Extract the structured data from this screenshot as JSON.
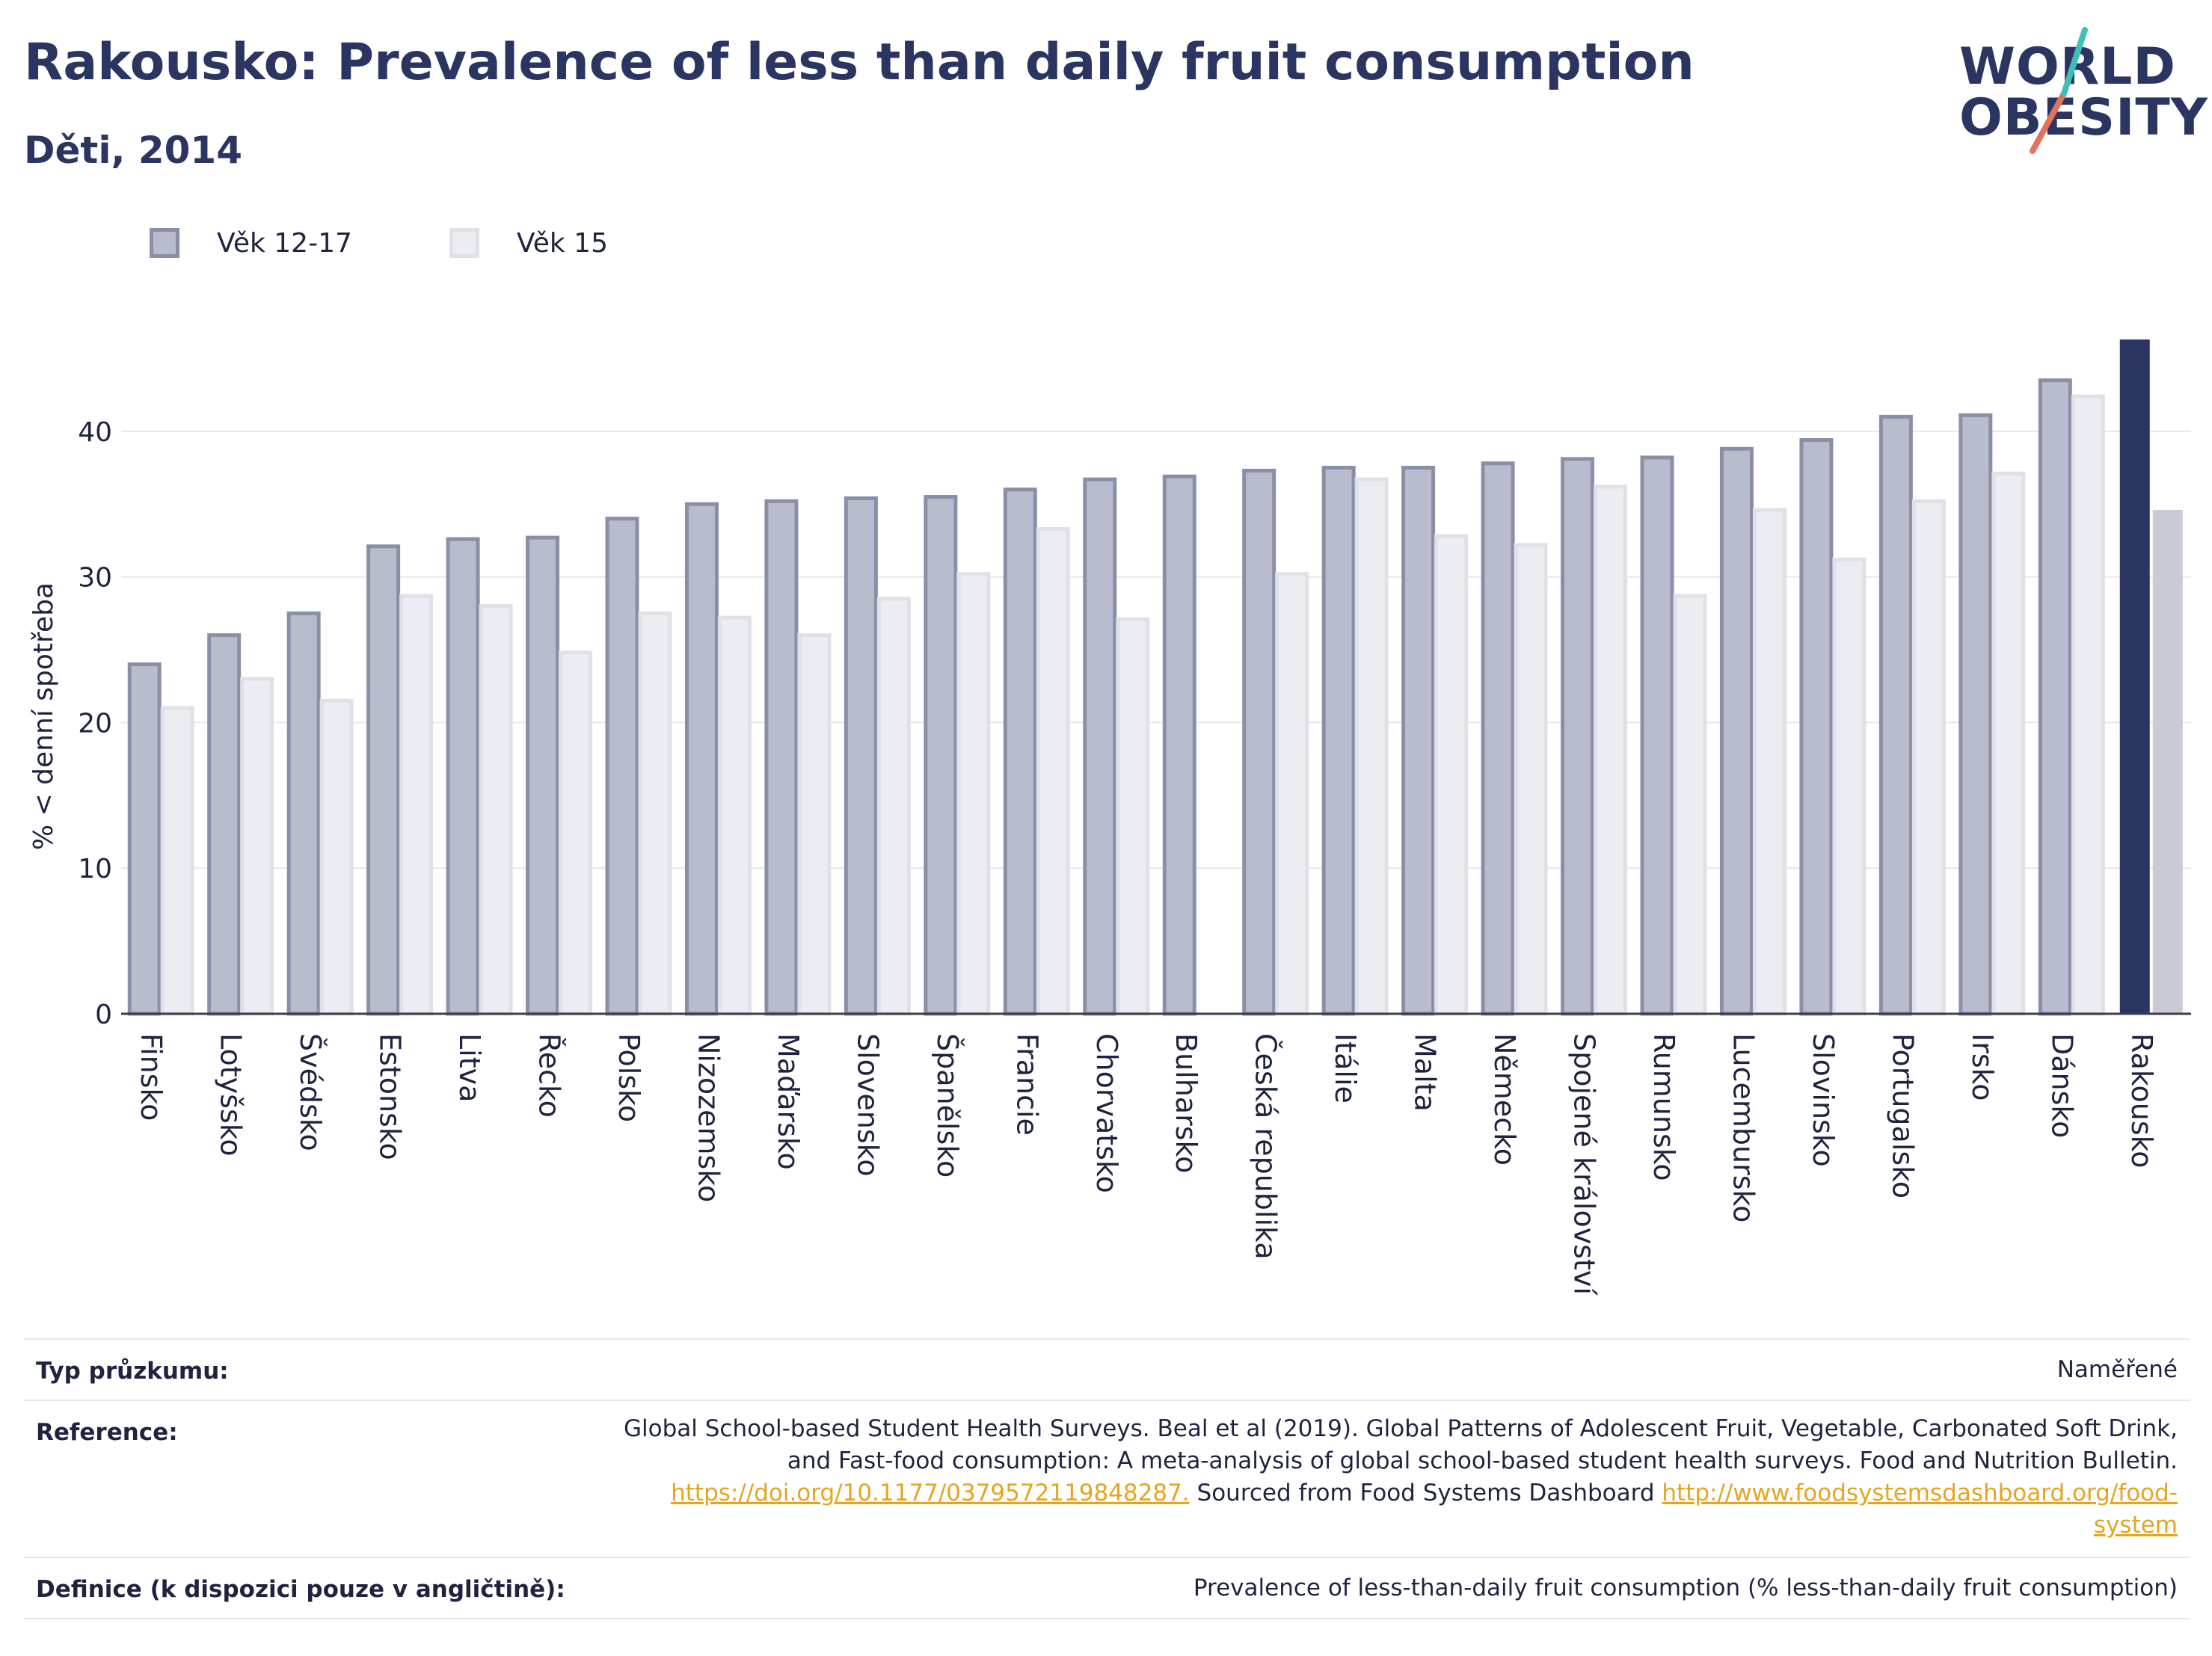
{
  "header": {
    "title": "Rakousko: Prevalence of less than daily fruit consumption",
    "subtitle": "Děti, 2014"
  },
  "logo": {
    "line1": "WORLD",
    "line2": "OBESITY"
  },
  "legend": [
    {
      "label": "Věk 12-17",
      "color": "#b9bccd"
    },
    {
      "label": "Věk 15",
      "color": "#ecedf2"
    }
  ],
  "chart_data": {
    "type": "bar",
    "ylabel": "% < denní spotřeba",
    "xlabel": "",
    "ylim": [
      0,
      46
    ],
    "yticks": [
      0,
      10,
      20,
      30,
      40
    ],
    "grid": true,
    "legend_position": "top-left",
    "categories": [
      "Finsko",
      "Lotyšsko",
      "Švédsko",
      "Estonsko",
      "Litva",
      "Řecko",
      "Polsko",
      "Nizozemsko",
      "Maďarsko",
      "Slovensko",
      "Španělsko",
      "Francie",
      "Chorvatsko",
      "Bulharsko",
      "Česká republika",
      "Itálie",
      "Malta",
      "Německo",
      "Spojené království",
      "Rumunsko",
      "Lucembursko",
      "Slovinsko",
      "Portugalsko",
      "Irsko",
      "Dánsko",
      "Rakousko"
    ],
    "highlight": "Rakousko",
    "series": [
      {
        "name": "Věk 12-17",
        "color": "#b9bccd",
        "highlight_color": "#2b3562",
        "values": [
          24.0,
          26.0,
          27.5,
          32.1,
          32.6,
          32.7,
          34.0,
          35.0,
          35.2,
          35.4,
          35.5,
          36.0,
          36.7,
          36.9,
          37.3,
          37.5,
          37.5,
          37.8,
          38.1,
          38.2,
          38.8,
          39.4,
          41.0,
          41.1,
          43.5,
          46.3
        ]
      },
      {
        "name": "Věk 15",
        "color": "#ecedf2",
        "highlight_color": "#c9cad6",
        "values": [
          21.0,
          23.0,
          21.5,
          28.7,
          28.0,
          24.8,
          27.5,
          27.2,
          26.0,
          28.5,
          30.2,
          33.3,
          27.1,
          null,
          30.2,
          36.7,
          32.8,
          32.2,
          36.2,
          28.7,
          34.6,
          31.2,
          35.2,
          37.1,
          42.4,
          34.6
        ]
      }
    ]
  },
  "table": {
    "survey_label": "Typ průzkumu:",
    "survey_value": "Naměřené",
    "reference_label": "Reference:",
    "reference_line1": "Global School-based Student Health Surveys. Beal et al (2019). Global Patterns of Adolescent Fruit, Vegetable, Carbonated Soft Drink,",
    "reference_line2": "and Fast-food consumption: A meta-analysis of global school-based student health surveys. Food and Nutrition Bulletin.",
    "reference_link1": "https://doi.org/10.1177/0379572119848287.",
    "reference_mid": " Sourced from Food Systems Dashboard ",
    "reference_link2a": "http://www.foodsystemsdashboard.org/food-",
    "reference_link2b": "system",
    "definition_label": "Definice (k dispozici pouze v angličtině):",
    "definition_value": "Prevalence of less-than-daily fruit consumption (% less-than-daily fruit consumption)"
  }
}
